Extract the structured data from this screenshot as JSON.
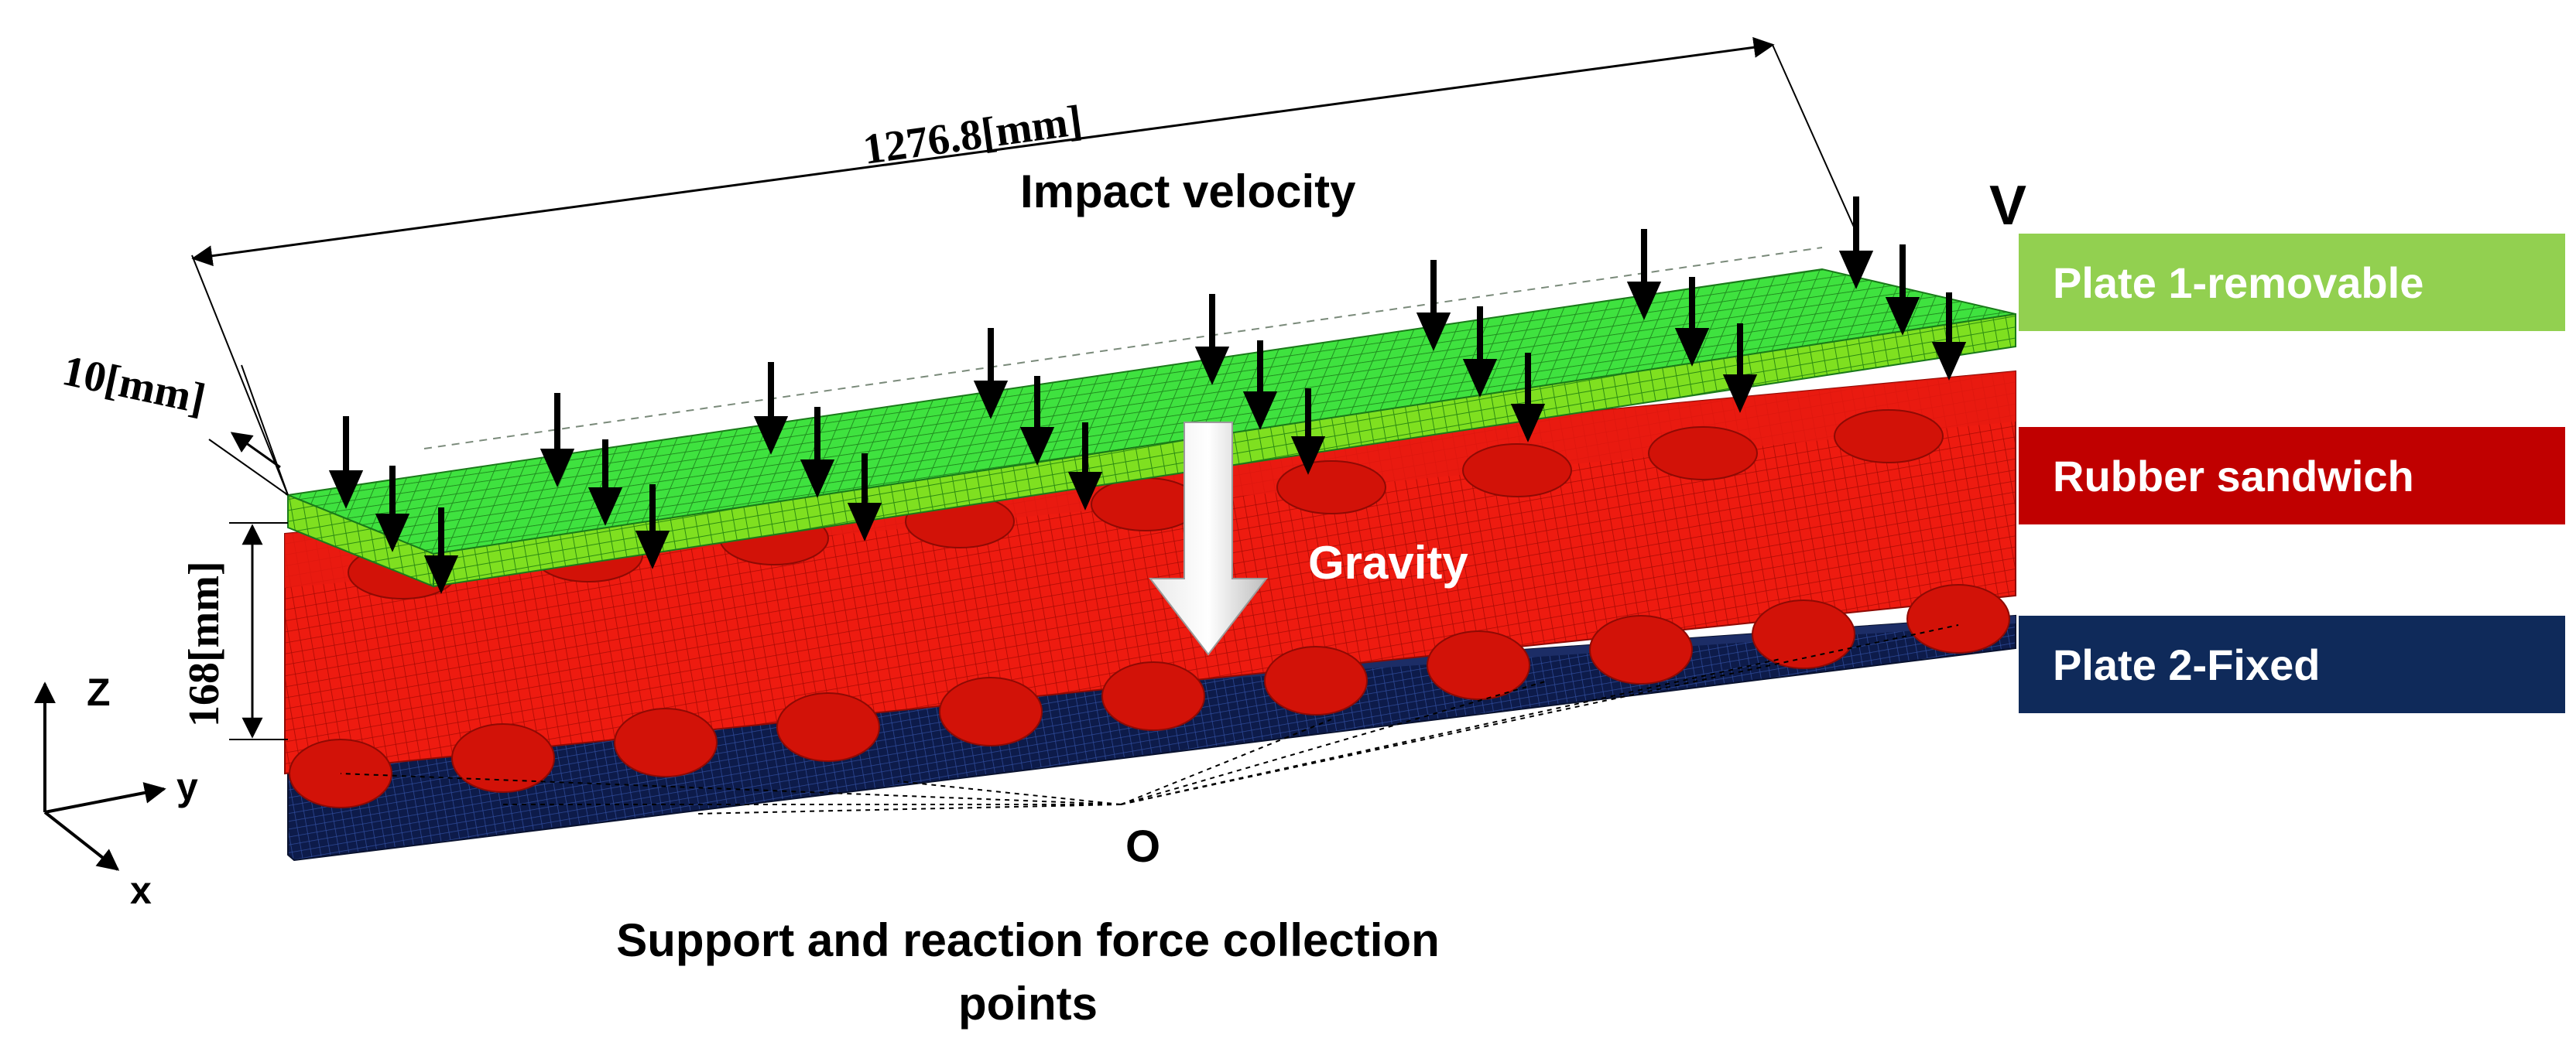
{
  "dimensions": {
    "length": "1276.8[mm]",
    "plate_thickness": "10[mm]",
    "height": "168[mm]"
  },
  "labels": {
    "impact_velocity": "Impact velocity",
    "velocity_symbol": "V",
    "gravity": "Gravity",
    "origin": "O",
    "support_caption_line1": "Support and reaction force collection",
    "support_caption_line2": "points"
  },
  "axes": {
    "z": "Z",
    "y": "y",
    "x": "x"
  },
  "legend": [
    {
      "label": "Plate 1-removable",
      "color": "#92d050"
    },
    {
      "label": "Rubber sandwich",
      "color": "#c00000"
    },
    {
      "label": "Plate 2-Fixed",
      "color": "#0f2a5a"
    }
  ],
  "colors": {
    "plate_top": "#3fe23f",
    "plate_front": "#78e01e",
    "rubber": "#ee1b10",
    "rubber_dark": "#c40d06",
    "base_plate": "#0d1b4a",
    "arrow": "#000000"
  }
}
